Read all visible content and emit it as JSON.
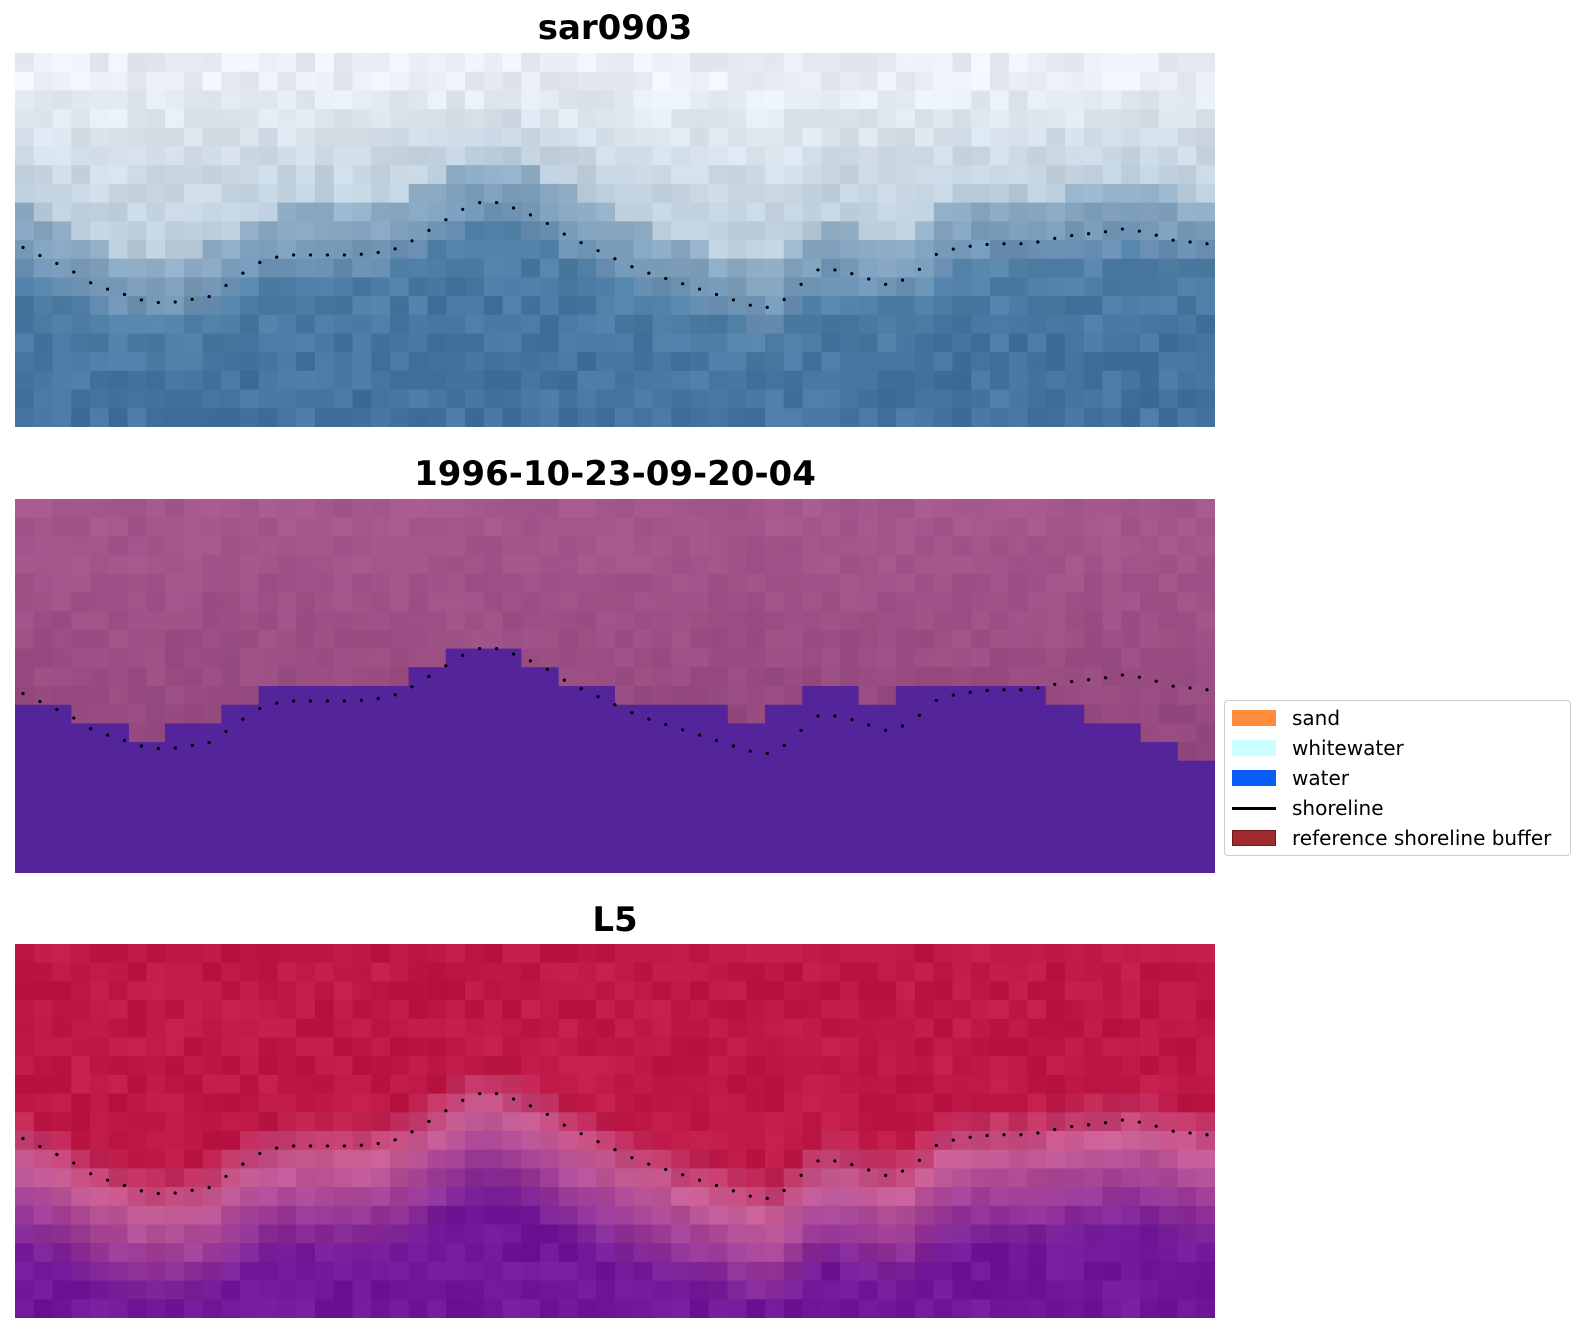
{
  "panels": [
    {
      "title": "sar0903",
      "style": "rgb-composite"
    },
    {
      "title": "1996-10-23-09-20-04",
      "style": "classification"
    },
    {
      "title": "L5",
      "style": "index-map"
    }
  ],
  "legend": {
    "items": [
      {
        "label": "sand",
        "type": "patch",
        "color": "#ff8c3c"
      },
      {
        "label": "whitewater",
        "type": "patch",
        "color": "#ccffff"
      },
      {
        "label": "water",
        "type": "patch",
        "color": "#0a5cf5"
      },
      {
        "label": "shoreline",
        "type": "line",
        "color": "#000000"
      },
      {
        "label": "reference shoreline buffer",
        "type": "patch",
        "color": "#a02c30"
      }
    ]
  },
  "colors": {
    "shoreline_dots": "#000000",
    "class_water": "#53249a",
    "class_land": "#a45a90",
    "index_high": "#bf1a48",
    "index_low": "#6e1a98"
  },
  "shoreline_profile": [
    [
      0.0,
      0.52
    ],
    [
      0.02,
      0.55
    ],
    [
      0.04,
      0.58
    ],
    [
      0.06,
      0.62
    ],
    [
      0.08,
      0.64
    ],
    [
      0.1,
      0.66
    ],
    [
      0.12,
      0.67
    ],
    [
      0.14,
      0.66
    ],
    [
      0.16,
      0.65
    ],
    [
      0.18,
      0.6
    ],
    [
      0.2,
      0.56
    ],
    [
      0.22,
      0.54
    ],
    [
      0.25,
      0.54
    ],
    [
      0.28,
      0.54
    ],
    [
      0.31,
      0.53
    ],
    [
      0.33,
      0.5
    ],
    [
      0.35,
      0.46
    ],
    [
      0.37,
      0.42
    ],
    [
      0.385,
      0.4
    ],
    [
      0.4,
      0.4
    ],
    [
      0.42,
      0.42
    ],
    [
      0.44,
      0.45
    ],
    [
      0.46,
      0.49
    ],
    [
      0.48,
      0.52
    ],
    [
      0.5,
      0.55
    ],
    [
      0.52,
      0.58
    ],
    [
      0.54,
      0.6
    ],
    [
      0.56,
      0.62
    ],
    [
      0.58,
      0.64
    ],
    [
      0.6,
      0.66
    ],
    [
      0.62,
      0.68
    ],
    [
      0.635,
      0.68
    ],
    [
      0.65,
      0.64
    ],
    [
      0.67,
      0.58
    ],
    [
      0.69,
      0.58
    ],
    [
      0.71,
      0.6
    ],
    [
      0.73,
      0.62
    ],
    [
      0.75,
      0.6
    ],
    [
      0.77,
      0.54
    ],
    [
      0.79,
      0.52
    ],
    [
      0.82,
      0.51
    ],
    [
      0.85,
      0.51
    ],
    [
      0.88,
      0.49
    ],
    [
      0.91,
      0.48
    ],
    [
      0.93,
      0.47
    ],
    [
      0.95,
      0.48
    ],
    [
      0.97,
      0.5
    ],
    [
      1.0,
      0.51
    ]
  ],
  "class_boundary": [
    [
      0.0,
      0.55
    ],
    [
      0.047,
      0.55
    ],
    [
      0.047,
      0.6
    ],
    [
      0.095,
      0.6
    ],
    [
      0.095,
      0.65
    ],
    [
      0.125,
      0.65
    ],
    [
      0.125,
      0.6
    ],
    [
      0.172,
      0.6
    ],
    [
      0.172,
      0.55
    ],
    [
      0.203,
      0.55
    ],
    [
      0.203,
      0.5
    ],
    [
      0.328,
      0.5
    ],
    [
      0.328,
      0.45
    ],
    [
      0.359,
      0.45
    ],
    [
      0.359,
      0.4
    ],
    [
      0.422,
      0.4
    ],
    [
      0.422,
      0.45
    ],
    [
      0.453,
      0.45
    ],
    [
      0.453,
      0.5
    ],
    [
      0.5,
      0.5
    ],
    [
      0.5,
      0.55
    ],
    [
      0.594,
      0.55
    ],
    [
      0.594,
      0.6
    ],
    [
      0.625,
      0.6
    ],
    [
      0.625,
      0.55
    ],
    [
      0.656,
      0.55
    ],
    [
      0.656,
      0.5
    ],
    [
      0.703,
      0.5
    ],
    [
      0.703,
      0.55
    ],
    [
      0.734,
      0.55
    ],
    [
      0.734,
      0.5
    ],
    [
      0.859,
      0.5
    ],
    [
      0.859,
      0.55
    ],
    [
      0.891,
      0.55
    ],
    [
      0.891,
      0.6
    ],
    [
      0.938,
      0.6
    ],
    [
      0.938,
      0.65
    ],
    [
      0.969,
      0.65
    ],
    [
      0.969,
      0.7
    ],
    [
      1.0,
      0.7
    ]
  ]
}
